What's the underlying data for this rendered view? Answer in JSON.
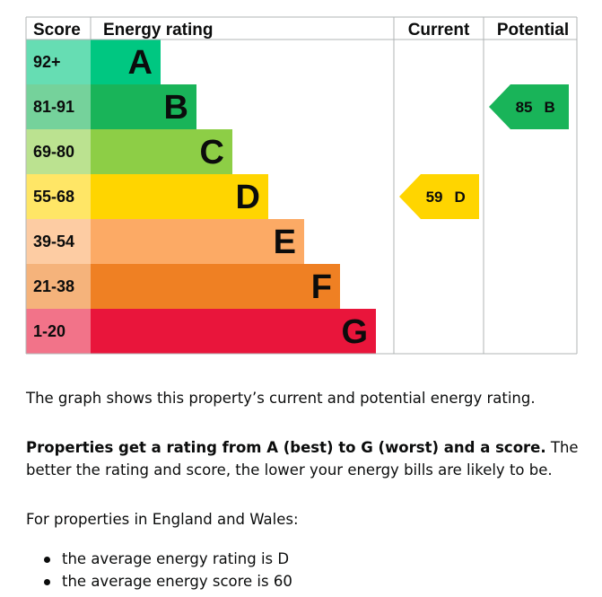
{
  "chart_data": {
    "type": "bar",
    "headers": {
      "score": "Score",
      "rating": "Energy rating",
      "current": "Current",
      "potential": "Potential"
    },
    "bands": [
      {
        "letter": "A",
        "range": "92+",
        "color": "#00c781"
      },
      {
        "letter": "B",
        "range": "81-91",
        "color": "#19b459"
      },
      {
        "letter": "C",
        "range": "69-80",
        "color": "#8dce46"
      },
      {
        "letter": "D",
        "range": "55-68",
        "color": "#ffd500"
      },
      {
        "letter": "E",
        "range": "39-54",
        "color": "#fcaa65"
      },
      {
        "letter": "F",
        "range": "21-38",
        "color": "#ef8023"
      },
      {
        "letter": "G",
        "range": "1-20",
        "color": "#e9153b"
      }
    ],
    "current": {
      "score": 59,
      "band": "D",
      "label": "59 D",
      "color": "#ffd500"
    },
    "potential": {
      "score": 85,
      "band": "B",
      "label": "85 B",
      "color": "#19b459"
    }
  },
  "text": {
    "intro": "The graph shows this property’s current and potential energy rating.",
    "rating_bold": "Properties get a rating from A (best) to G (worst) and a score.",
    "rating_rest": " The better the rating and score, the lower your energy bills are likely to be.",
    "region": "For properties in England and Wales:",
    "bullets": [
      "the average energy rating is D",
      "the average energy score is 60"
    ]
  }
}
